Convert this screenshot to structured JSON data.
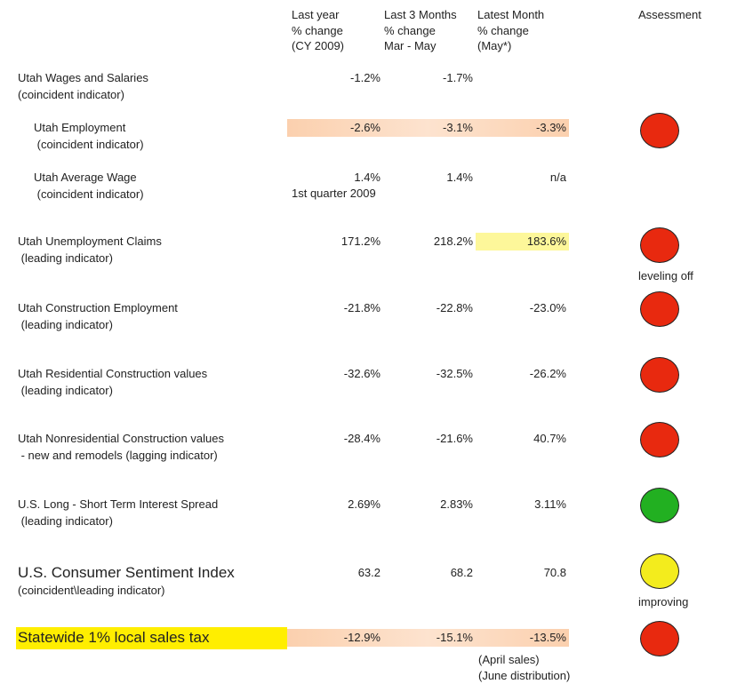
{
  "header": {
    "columns": [
      [
        "Last year",
        "% change",
        "(CY 2009)"
      ],
      [
        "Last 3 Months",
        "% change",
        "Mar - May"
      ],
      [
        "Latest Month",
        "% change",
        "(May*)"
      ]
    ],
    "assessment": "Assessment"
  },
  "rows": [
    {
      "label": [
        "Utah Wages and Salaries",
        "(coincident indicator)"
      ],
      "values": [
        "-1.2%",
        "-1.7%"
      ]
    },
    {
      "label": [
        "Utah Employment",
        " (coincident indicator)"
      ],
      "values": [
        "-2.6%",
        "-3.1%",
        "-3.3%"
      ],
      "highlight": "values",
      "assessment": {
        "color": "#e8290f"
      }
    },
    {
      "label": [
        "Utah Average Wage",
        " (coincident indicator)"
      ],
      "values": [
        "1.4%",
        "1.4%",
        "n/a"
      ],
      "notes": [
        "1st quarter 2009"
      ]
    },
    {
      "label": [
        "Utah Unemployment Claims",
        " (leading indicator)"
      ],
      "values": [
        "171.2%",
        "218.2%",
        "183.6%"
      ],
      "highlight": "latest",
      "assessment": {
        "color": "#e8290f",
        "note": "leveling off"
      }
    },
    {
      "label": [
        "Utah Construction Employment",
        " (leading indicator)"
      ],
      "values": [
        "-21.8%",
        "-22.8%",
        "-23.0%"
      ],
      "assessment": {
        "color": "#e8290f"
      }
    },
    {
      "label": [
        "Utah Residential Construction values",
        " (leading indicator)"
      ],
      "values": [
        "-32.6%",
        "-32.5%",
        "-26.2%"
      ],
      "assessment": {
        "color": "#e8290f"
      }
    },
    {
      "label": [
        "Utah Nonresidential Construction values",
        " - new and remodels (lagging indicator)"
      ],
      "values": [
        "-28.4%",
        "-21.6%",
        "40.7%"
      ],
      "assessment": {
        "color": "#e8290f"
      }
    },
    {
      "label": [
        "U.S. Long - Short Term Interest Spread",
        " (leading indicator)"
      ],
      "values": [
        "2.69%",
        "2.83%",
        "3.11%"
      ],
      "assessment": {
        "color": "#22b021"
      }
    },
    {
      "label": [
        "U.S. Consumer Sentiment Index",
        "(coincident\\leading indicator)"
      ],
      "values": [
        "63.2",
        "68.2",
        "70.8"
      ],
      "assessment": {
        "color": "#f3ec1d",
        "note": "improving"
      }
    },
    {
      "label": [
        "Statewide 1% local sales tax"
      ],
      "values": [
        "-12.9%",
        "-15.1%",
        "-13.5%"
      ],
      "highlight": "values",
      "label_highlight": true,
      "latest_notes": [
        "(April sales)",
        "(June distribution)"
      ],
      "assessment": {
        "color": "#e8290f"
      }
    }
  ]
}
